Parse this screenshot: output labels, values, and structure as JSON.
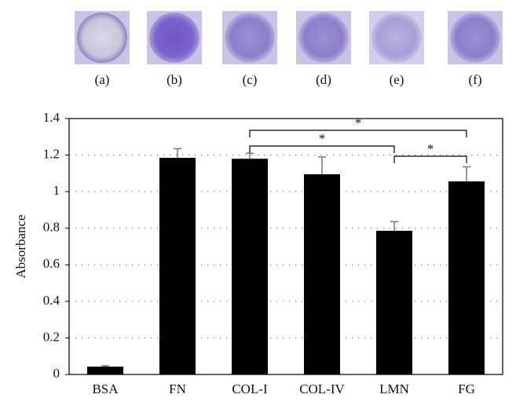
{
  "chart_data": {
    "type": "bar",
    "image_labels": [
      "(a)",
      "(b)",
      "(c)",
      "(d)",
      "(e)",
      "(f)"
    ],
    "ylabel": "Absorbance",
    "categories": [
      "BSA",
      "FN",
      "COL-I",
      "COL-IV",
      "LMN",
      "FG"
    ],
    "values": [
      0.043,
      1.185,
      1.18,
      1.095,
      0.786,
      1.056
    ],
    "errors": [
      0.005,
      0.05,
      0.03,
      0.095,
      0.05,
      0.08
    ],
    "color": "#000000",
    "ylim": [
      0,
      1.4
    ],
    "yticks": [
      0,
      0.2,
      0.4,
      0.6,
      0.8,
      1,
      1.2,
      1.4
    ],
    "grid": true,
    "significance": [
      {
        "from": "COL-I",
        "to": "FG",
        "label": "*"
      },
      {
        "from": "COL-I",
        "to": "LMN",
        "label": "*"
      },
      {
        "from": "LMN",
        "to": "FG",
        "label": "*"
      }
    ]
  }
}
